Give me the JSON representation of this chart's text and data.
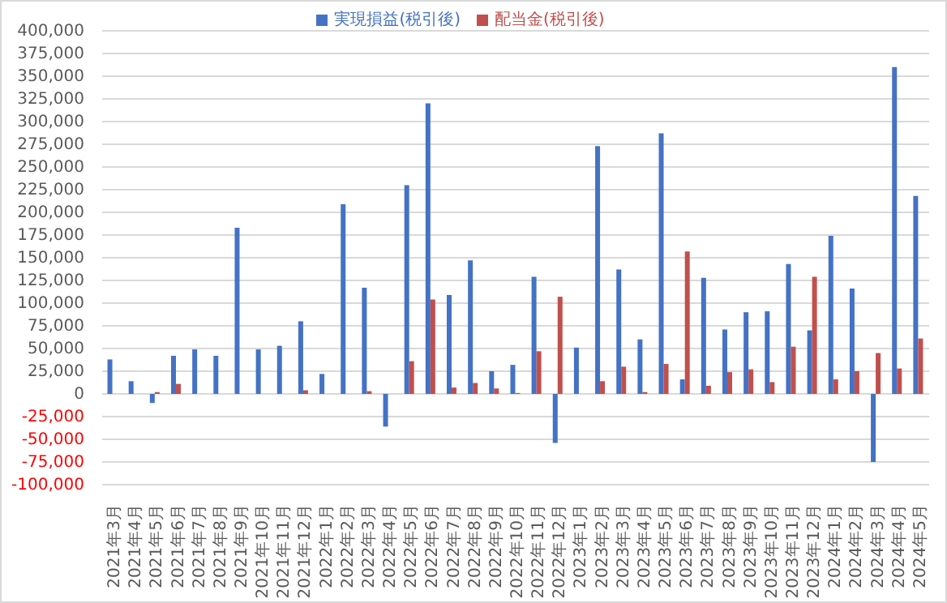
{
  "chart_data": {
    "type": "bar",
    "categories": [
      "2021年3月",
      "2021年4月",
      "2021年5月",
      "2021年6月",
      "2021年7月",
      "2021年8月",
      "2021年9月",
      "2021年10月",
      "2021年11月",
      "2021年12月",
      "2022年1月",
      "2022年2月",
      "2022年3月",
      "2022年4月",
      "2022年5月",
      "2022年6月",
      "2022年7月",
      "2022年8月",
      "2022年9月",
      "2022年10月",
      "2022年11月",
      "2022年12月",
      "2023年1月",
      "2023年2月",
      "2023年3月",
      "2023年4月",
      "2023年5月",
      "2023年6月",
      "2023年7月",
      "2023年8月",
      "2023年9月",
      "2023年10月",
      "2023年11月",
      "2023年12月",
      "2024年1月",
      "2024年2月",
      "2024年3月",
      "2024年4月",
      "2024年5月"
    ],
    "series": [
      {
        "name": "実現損益(税引後)",
        "color": "#4472c4",
        "values": [
          38000,
          14000,
          -10000,
          42000,
          49000,
          42000,
          183000,
          49000,
          53000,
          80000,
          22000,
          209000,
          117000,
          -36000,
          230000,
          320000,
          109000,
          147000,
          25000,
          32000,
          129000,
          -54000,
          51000,
          273000,
          137000,
          60000,
          287000,
          16000,
          128000,
          71000,
          90000,
          91000,
          143000,
          70000,
          174000,
          116000,
          -75000,
          360000,
          218000
        ]
      },
      {
        "name": "配当金(税引後)",
        "color": "#c0504d",
        "values": [
          0,
          0,
          2000,
          11000,
          0,
          0,
          0,
          0,
          0,
          4000,
          0,
          0,
          3000,
          0,
          36000,
          104000,
          7000,
          12000,
          6000,
          1000,
          47000,
          107000,
          0,
          14000,
          30000,
          2000,
          33000,
          157000,
          9000,
          24000,
          27000,
          13000,
          52000,
          129000,
          16000,
          25000,
          45000,
          28000,
          61000
        ]
      }
    ],
    "ylim": [
      -100000,
      400000
    ],
    "yticks": [
      {
        "value": -100000,
        "label": "-100,000"
      },
      {
        "value": -75000,
        "label": "-75,000"
      },
      {
        "value": -50000,
        "label": "-50,000"
      },
      {
        "value": -25000,
        "label": "-25,000"
      },
      0,
      {
        "value": 25000,
        "label": "25,000"
      },
      {
        "value": 50000,
        "label": "50,000"
      },
      {
        "value": 75000,
        "label": "75,000"
      },
      {
        "value": 100000,
        "label": "100,000"
      },
      {
        "value": 125000,
        "label": "125,000"
      },
      {
        "value": 150000,
        "label": "150,000"
      },
      {
        "value": 175000,
        "label": "175,000"
      },
      {
        "value": 200000,
        "label": "200,000"
      },
      {
        "value": 225000,
        "label": "225,000"
      },
      {
        "value": 250000,
        "label": "250,000"
      },
      {
        "value": 275000,
        "label": "275,000"
      },
      {
        "value": 300000,
        "label": "300,000"
      },
      {
        "value": 325000,
        "label": "325,000"
      },
      {
        "value": 350000,
        "label": "350,000"
      },
      {
        "value": 375000,
        "label": "375,000"
      },
      {
        "value": 400000,
        "label": "400,000"
      }
    ],
    "grid": "y",
    "legend": "top"
  }
}
